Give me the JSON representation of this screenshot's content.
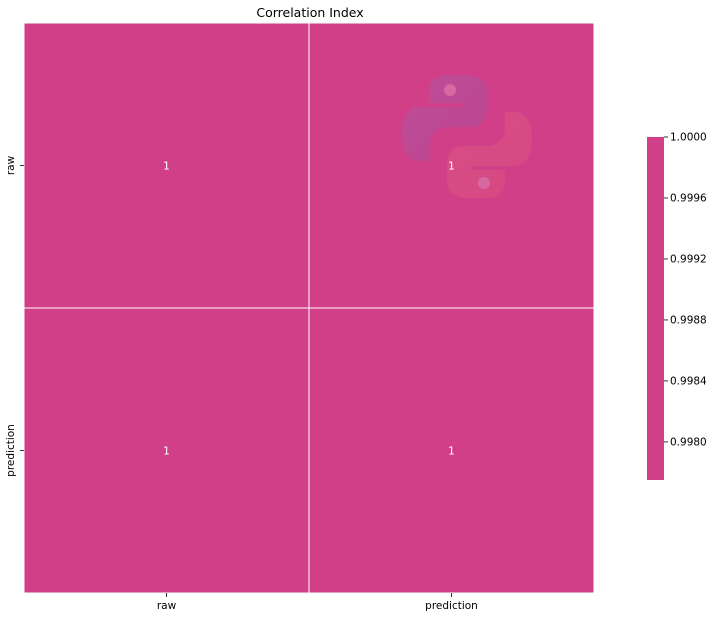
{
  "chart_data": {
    "type": "heatmap",
    "title": "Correlation Index",
    "xlabel": "",
    "ylabel": "",
    "x_categories": [
      "raw",
      "prediction"
    ],
    "y_categories": [
      "raw",
      "prediction"
    ],
    "values": [
      [
        1,
        1
      ],
      [
        1,
        1
      ]
    ],
    "cell_labels": [
      [
        "1",
        "1"
      ],
      [
        "1",
        "1"
      ]
    ],
    "cell_color": "#d03f87",
    "gridline_color": "#ffffff",
    "colorbar": {
      "ticks": [
        "1.0000",
        "0.9996",
        "0.9992",
        "0.9988",
        "0.9984",
        "0.9980"
      ],
      "tick_values": [
        1.0,
        0.9996,
        0.9992,
        0.9988,
        0.9984,
        0.998
      ],
      "range": [
        0.99775,
        1.0
      ],
      "color": "#d03f87"
    },
    "watermark": "python-logo"
  }
}
